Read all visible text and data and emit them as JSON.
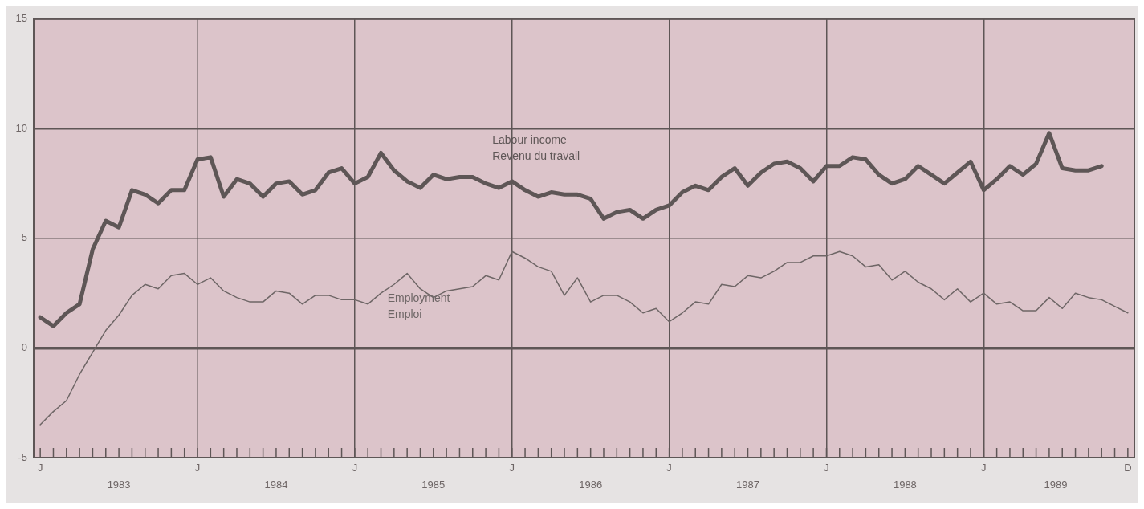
{
  "chart_data": {
    "type": "line",
    "categories": [
      "J",
      null,
      null,
      null,
      null,
      null,
      null,
      null,
      null,
      null,
      null,
      null,
      "J",
      null,
      null,
      null,
      null,
      null,
      null,
      null,
      null,
      null,
      null,
      null,
      "J",
      null,
      null,
      null,
      null,
      null,
      null,
      null,
      null,
      null,
      null,
      null,
      "J",
      null,
      null,
      null,
      null,
      null,
      null,
      null,
      null,
      null,
      null,
      null,
      "J",
      null,
      null,
      null,
      null,
      null,
      null,
      null,
      null,
      null,
      null,
      null,
      "J",
      null,
      null,
      null,
      null,
      null,
      null,
      null,
      null,
      null,
      null,
      null,
      "J",
      null,
      null,
      null,
      null,
      null,
      null,
      null,
      null,
      null,
      null,
      "D"
    ],
    "series": [
      {
        "name": "Labour income\nRevenu du travail",
        "color": "#5e5656",
        "values": [
          1.4,
          1.0,
          1.6,
          2.0,
          4.5,
          5.8,
          5.5,
          7.2,
          7.0,
          6.6,
          7.2,
          7.2,
          8.6,
          8.7,
          6.9,
          7.7,
          7.5,
          6.9,
          7.5,
          7.6,
          7.0,
          7.2,
          8.0,
          8.2,
          7.5,
          7.8,
          8.9,
          8.1,
          7.6,
          7.3,
          7.9,
          7.7,
          7.8,
          7.8,
          7.5,
          7.3,
          7.6,
          7.2,
          6.9,
          7.1,
          7.0,
          7.0,
          6.8,
          5.9,
          6.2,
          6.3,
          5.9,
          6.3,
          6.5,
          7.1,
          7.4,
          7.2,
          7.8,
          8.2,
          7.4,
          8.0,
          8.4,
          8.5,
          8.2,
          7.6,
          8.3,
          8.3,
          8.7,
          8.6,
          7.9,
          7.5,
          7.7,
          8.3,
          7.9,
          7.5,
          8.0,
          8.5,
          7.2,
          7.7,
          8.3,
          7.9,
          8.4,
          9.8,
          8.2,
          8.1,
          8.1,
          8.3,
          null,
          null
        ]
      },
      {
        "name": "Employment\nEmploi",
        "color": "#6e6666",
        "values": [
          -3.5,
          -2.9,
          -2.4,
          -1.2,
          -0.2,
          0.8,
          1.5,
          2.4,
          2.9,
          2.7,
          3.3,
          3.4,
          2.9,
          3.2,
          2.6,
          2.3,
          2.1,
          2.1,
          2.6,
          2.5,
          2.0,
          2.4,
          2.4,
          2.2,
          2.2,
          2.0,
          2.5,
          2.9,
          3.4,
          2.7,
          2.3,
          2.6,
          2.7,
          2.8,
          3.3,
          3.1,
          4.4,
          4.1,
          3.7,
          3.5,
          2.4,
          3.2,
          2.1,
          2.4,
          2.4,
          2.1,
          1.6,
          1.8,
          1.2,
          1.6,
          2.1,
          2.0,
          2.9,
          2.8,
          3.3,
          3.2,
          3.5,
          3.9,
          3.9,
          4.2,
          4.2,
          4.4,
          4.2,
          3.7,
          3.8,
          3.1,
          3.5,
          3.0,
          2.7,
          2.2,
          2.7,
          2.1,
          2.5,
          2.0,
          2.1,
          1.7,
          1.7,
          2.3,
          1.8,
          2.5,
          2.3,
          2.2,
          1.9,
          1.6
        ]
      }
    ],
    "ylim": [
      -5,
      15
    ],
    "yticks": [
      -5,
      0,
      5,
      10,
      15
    ],
    "grid": true,
    "legend": false,
    "marker": "none",
    "line_style": "solid",
    "annotations": [
      "1983",
      "1984",
      "1985",
      "1986",
      "1987",
      "1988",
      "1989"
    ]
  }
}
